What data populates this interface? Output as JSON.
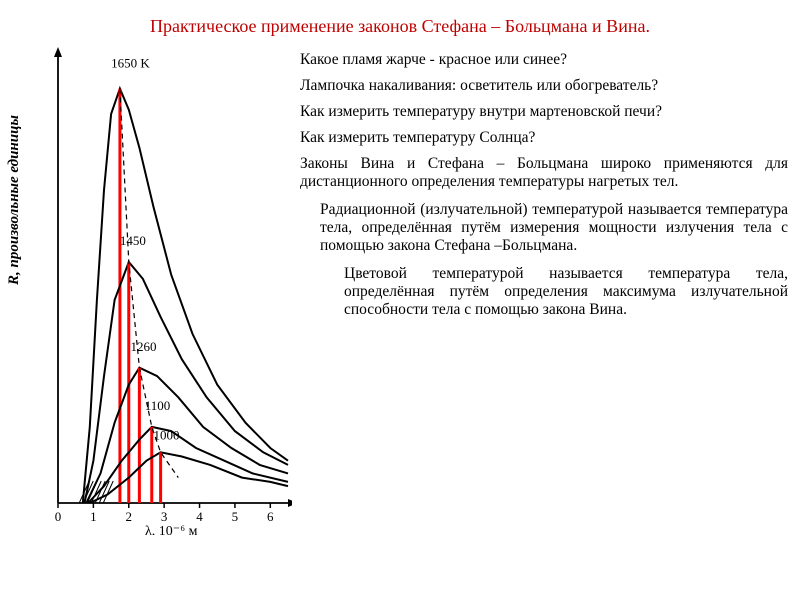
{
  "title": "Практическое применение законов Стефана – Больцмана и Вина.",
  "questions": {
    "q1": "Какое пламя жарче - красное или синее?",
    "q2": "Лампочка накаливания: осветитель или обогреватель?",
    "q3": "Как измерить температуру внутри мартеновской печи?",
    "q4": "Как измерить температуру Солнца?"
  },
  "paragraphs": {
    "p1": "Законы Вина и Стефана – Больцмана широко применяются для дистанционного определения температуры нагретых тел.",
    "p2": "Радиационной (излучательной) температурой называется температура тела, определённая путём измерения мощности излучения тела с помощью закона Стефана –Больцмана.",
    "p3": "Цветовой температурой называется температура тела, определённая путём определения максимума излучательной способности тела с помощью закона Вина."
  },
  "chart": {
    "type": "line",
    "background_color": "#ffffff",
    "axis_color": "#000000",
    "line_color": "#000000",
    "marker_line_color": "#ff0000",
    "marker_line_width": 3,
    "line_width": 2,
    "xlabel": "λ, 10⁻⁶ м",
    "ylabel": "R, произвольные единицы",
    "xlim": [
      0,
      6.5
    ],
    "ylim": [
      0,
      105
    ],
    "xticks": [
      0,
      1,
      2,
      3,
      4,
      5,
      6
    ],
    "label_fontsize": 14,
    "tick_fontsize": 13,
    "curves": [
      {
        "T": "1650 K",
        "label_pos": {
          "lambda": 1.5,
          "R": 103
        },
        "peak_lambda": 1.75,
        "peak_R": 98,
        "points": [
          [
            0.7,
            0
          ],
          [
            0.9,
            18
          ],
          [
            1.1,
            48
          ],
          [
            1.3,
            74
          ],
          [
            1.5,
            92
          ],
          [
            1.75,
            98
          ],
          [
            2.0,
            93
          ],
          [
            2.3,
            84
          ],
          [
            2.7,
            70
          ],
          [
            3.2,
            54
          ],
          [
            3.8,
            40
          ],
          [
            4.5,
            28
          ],
          [
            5.3,
            19
          ],
          [
            6.0,
            13
          ],
          [
            6.5,
            10
          ]
        ]
      },
      {
        "T": "1450",
        "label_pos": {
          "lambda": 1.75,
          "R": 61
        },
        "peak_lambda": 2.0,
        "peak_R": 57,
        "points": [
          [
            0.75,
            0
          ],
          [
            1.0,
            10
          ],
          [
            1.3,
            30
          ],
          [
            1.6,
            48
          ],
          [
            2.0,
            57
          ],
          [
            2.4,
            53
          ],
          [
            2.9,
            44
          ],
          [
            3.5,
            34
          ],
          [
            4.2,
            25
          ],
          [
            5.0,
            17
          ],
          [
            5.8,
            12
          ],
          [
            6.5,
            9
          ]
        ]
      },
      {
        "T": "1260",
        "label_pos": {
          "lambda": 2.05,
          "R": 36
        },
        "peak_lambda": 2.3,
        "peak_R": 32,
        "points": [
          [
            0.8,
            0
          ],
          [
            1.2,
            7
          ],
          [
            1.6,
            19
          ],
          [
            2.0,
            28
          ],
          [
            2.3,
            32
          ],
          [
            2.8,
            30
          ],
          [
            3.4,
            25
          ],
          [
            4.1,
            18
          ],
          [
            4.9,
            13
          ],
          [
            5.7,
            9
          ],
          [
            6.5,
            7
          ]
        ]
      },
      {
        "T": "1100",
        "label_pos": {
          "lambda": 2.45,
          "R": 22
        },
        "peak_lambda": 2.65,
        "peak_R": 18,
        "points": [
          [
            0.85,
            0
          ],
          [
            1.3,
            4
          ],
          [
            1.8,
            10
          ],
          [
            2.3,
            15
          ],
          [
            2.65,
            18
          ],
          [
            3.2,
            17
          ],
          [
            3.9,
            13
          ],
          [
            4.7,
            10
          ],
          [
            5.5,
            7
          ],
          [
            6.5,
            5
          ]
        ]
      },
      {
        "T": "1000",
        "label_pos": {
          "lambda": 2.7,
          "R": 15
        },
        "peak_lambda": 2.9,
        "peak_R": 12,
        "points": [
          [
            0.9,
            0
          ],
          [
            1.4,
            2
          ],
          [
            2.0,
            6
          ],
          [
            2.5,
            10
          ],
          [
            2.9,
            12
          ],
          [
            3.5,
            11
          ],
          [
            4.3,
            9
          ],
          [
            5.2,
            6
          ],
          [
            6.0,
            5
          ],
          [
            6.5,
            4
          ]
        ]
      }
    ],
    "hatch_region": {
      "x": [
        0.6,
        1.0
      ],
      "color": "#000000"
    }
  },
  "colors": {
    "title": "#c00000",
    "text": "#000000",
    "background": "#ffffff"
  }
}
